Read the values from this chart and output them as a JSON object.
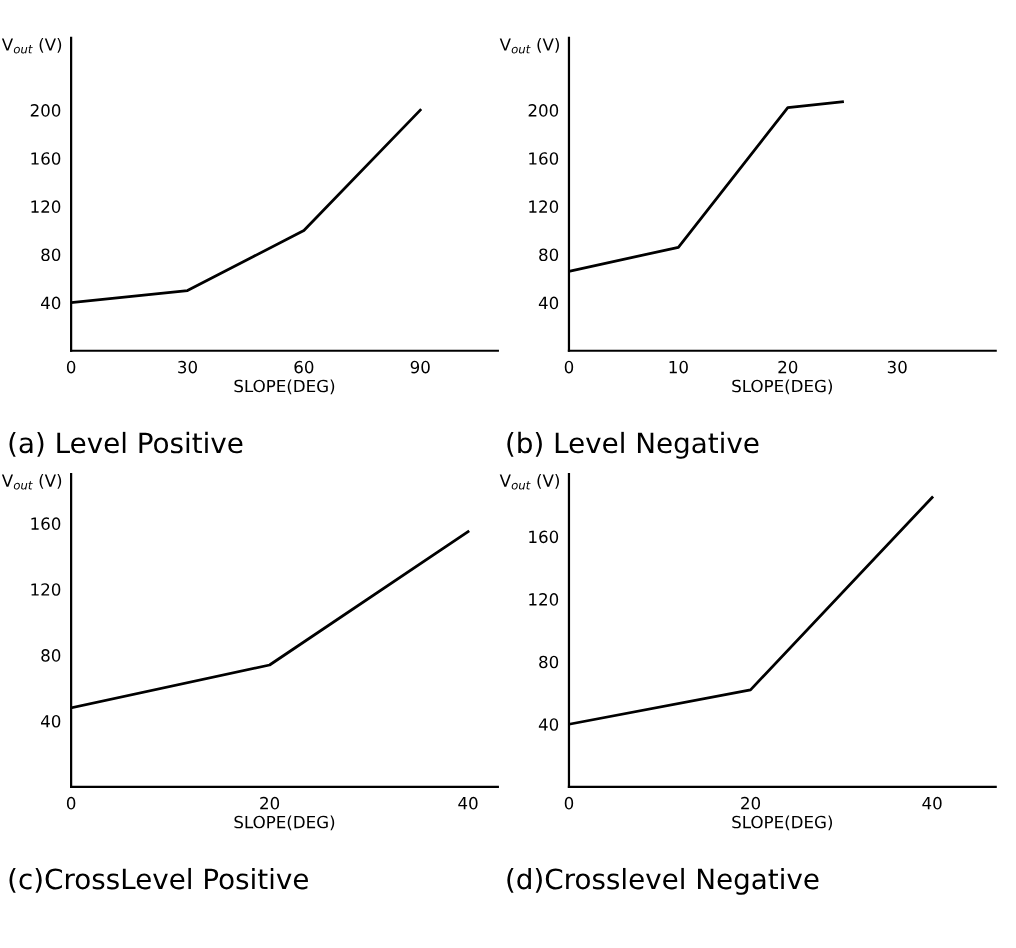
{
  "chart_data": [
    {
      "type": "line",
      "title": "(a) Level Positive",
      "xlabel": "SLOPE(DEG)",
      "ylabel": "V$_{out}$ (V)",
      "x": [
        0,
        30,
        60,
        90
      ],
      "series": [
        {
          "color": "#000000",
          "values": [
            40,
            50,
            100,
            200
          ]
        }
      ],
      "xlim": [
        0,
        110
      ],
      "xticks": [
        0,
        30,
        60,
        90
      ],
      "ylim": [
        0,
        260
      ],
      "yticks": [
        40,
        80,
        120,
        160,
        200
      ],
      "grid": false,
      "legend": false
    },
    {
      "type": "line",
      "title": "(b) Level Negative",
      "xlabel": "SLOPE(DEG)",
      "ylabel": "V$_{out}$ (V)",
      "x": [
        0,
        10,
        20,
        25
      ],
      "series": [
        {
          "color": "#000000",
          "values": [
            66,
            86,
            202,
            207
          ]
        }
      ],
      "xlim": [
        0,
        39
      ],
      "xticks": [
        0,
        10,
        20,
        30
      ],
      "ylim": [
        0,
        260
      ],
      "yticks": [
        40,
        80,
        120,
        160,
        200
      ],
      "grid": false,
      "legend": false
    },
    {
      "type": "line",
      "title": "(c)CrossLevel Positive",
      "xlabel": "SLOPE(DEG)",
      "ylabel": "V$_{out}$ (V)",
      "x": [
        0,
        20,
        40
      ],
      "series": [
        {
          "color": "#000000",
          "values": [
            48,
            74,
            155
          ]
        }
      ],
      "xlim": [
        0,
        43
      ],
      "xticks": [
        0,
        20,
        40
      ],
      "ylim": [
        0,
        190
      ],
      "yticks": [
        40,
        80,
        120,
        160
      ],
      "grid": false,
      "legend": false
    },
    {
      "type": "line",
      "title": "(d)Crosslevel Negative",
      "xlabel": "SLOPE(DEG)",
      "ylabel": "V$_{out}$ (V)",
      "x": [
        0,
        20,
        40
      ],
      "series": [
        {
          "color": "#000000",
          "values": [
            40,
            62,
            185
          ]
        }
      ],
      "xlim": [
        0,
        47
      ],
      "xticks": [
        0,
        20,
        40
      ],
      "ylim": [
        0,
        200
      ],
      "yticks": [
        40,
        80,
        120,
        160
      ],
      "grid": false,
      "legend": false
    }
  ]
}
